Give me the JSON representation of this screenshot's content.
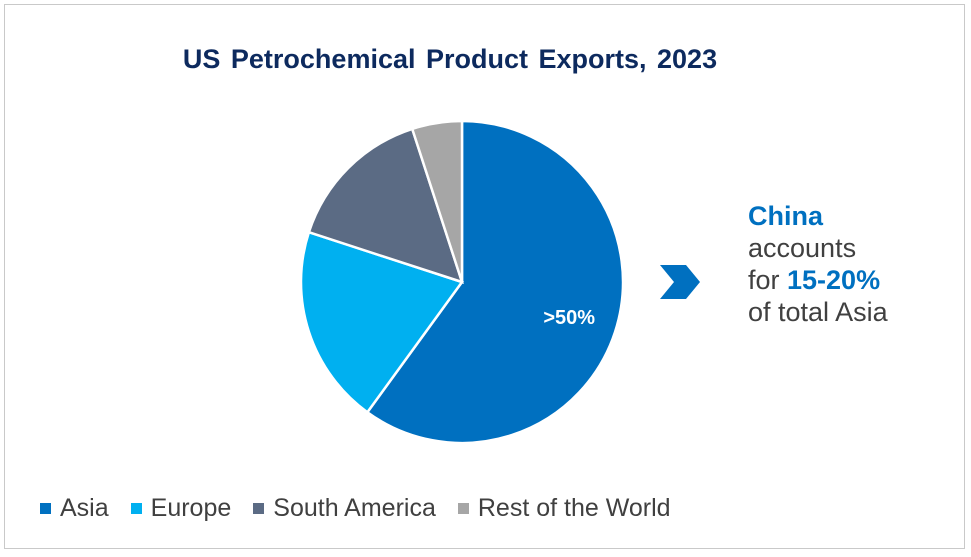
{
  "chart_data": {
    "type": "pie",
    "title": "US Petrochemical Product Exports, 2023",
    "slices": [
      {
        "name": "Asia",
        "value": 60,
        "color": "#0070c0",
        "label": ">50%"
      },
      {
        "name": "Europe",
        "value": 20,
        "color": "#00b0f0",
        "label": ""
      },
      {
        "name": "South America",
        "value": 15,
        "color": "#5b6b84",
        "label": ""
      },
      {
        "name": "Rest of the World",
        "value": 5,
        "color": "#a6a6a6",
        "label": ""
      }
    ],
    "legend_position": "bottom"
  },
  "annotation": {
    "arrow_icon": "chevron-right-icon",
    "line1": "China",
    "line2": "accounts",
    "line3_prefix": "for ",
    "line3_highlight": "15-20%",
    "line4": "of total Asia"
  }
}
